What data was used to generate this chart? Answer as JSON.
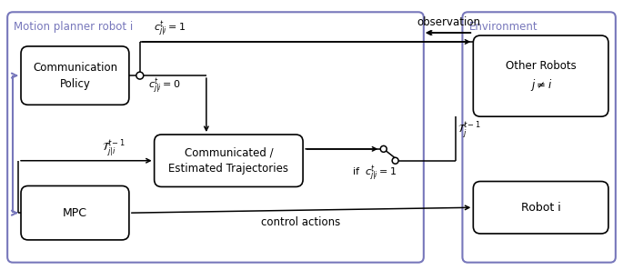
{
  "fig_width": 6.85,
  "fig_height": 2.97,
  "dpi": 100,
  "bg_color": "#ffffff",
  "border_color": "#7777bb",
  "title_motion": "Motion planner robot i",
  "title_env": "Environment",
  "box_comm_policy": "Communication\nPolicy",
  "box_comm_traj": "Communicated /\nEstimated Trajectories",
  "box_mpc": "MPC",
  "box_other_robots": "Other Robots\n$j \\neq i$",
  "box_robot_i": "Robot i",
  "label_observation": "observation",
  "label_control_actions": "control actions",
  "label_c1": "$c^t_{j|i} = 1$",
  "label_c0": "$c^t_{j|i} = 0$",
  "label_traj_ji": "$\\mathcal{T}^{t-1}_{j|i}$",
  "label_traj_j": "$\\mathcal{T}^{t-1}_{j}$",
  "label_if": "if  $c^t_{j|i} = 1$"
}
